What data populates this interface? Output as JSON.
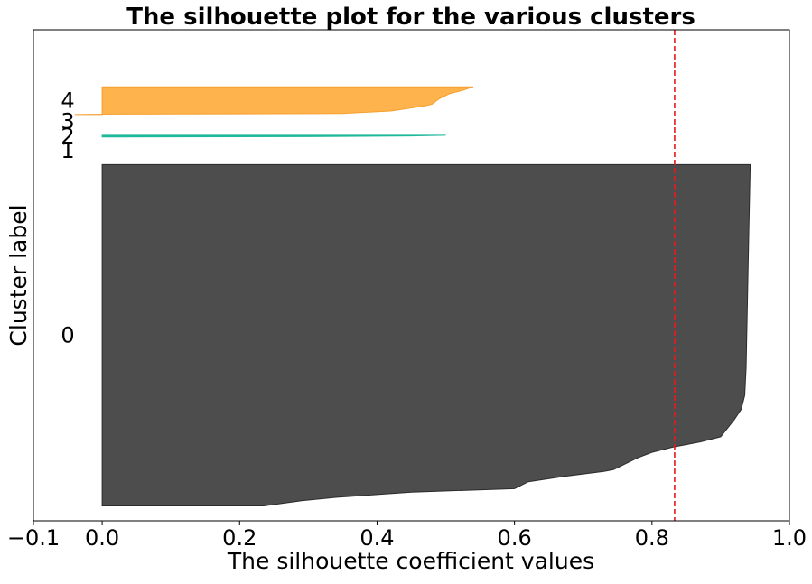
{
  "chart_data": {
    "type": "silhouette",
    "title": "The silhouette plot for the various clusters",
    "xlabel": "The silhouette coefficient values",
    "ylabel": "Cluster label",
    "xlim": [
      -0.1,
      1.0
    ],
    "ylim": [
      0,
      1420
    ],
    "xticks": [
      -0.1,
      0.0,
      0.2,
      0.4,
      0.6,
      0.8,
      1.0
    ],
    "xtick_labels": [
      "−0.1",
      "0.0",
      "0.2",
      "0.4",
      "0.6",
      "0.8",
      "1.0"
    ],
    "average_silhouette": 0.833,
    "average_line_color": "#e41a1c",
    "grid": false,
    "clusters": [
      {
        "label": "0",
        "color": "#4d4d4d",
        "edge_color": "#2b2b2b",
        "y_lower": 43,
        "y_upper": 1030,
        "profile": [
          [
            0,
            0.235
          ],
          [
            15,
            0.29
          ],
          [
            25,
            0.34
          ],
          [
            40,
            0.45
          ],
          [
            50,
            0.6
          ],
          [
            70,
            0.62
          ],
          [
            85,
            0.67
          ],
          [
            100,
            0.73
          ],
          [
            105,
            0.744
          ],
          [
            140,
            0.78
          ],
          [
            155,
            0.8
          ],
          [
            170,
            0.83
          ],
          [
            185,
            0.87
          ],
          [
            200,
            0.9
          ],
          [
            250,
            0.92
          ],
          [
            280,
            0.93
          ],
          [
            320,
            0.935
          ],
          [
            400,
            0.937
          ],
          [
            600,
            0.939
          ],
          [
            800,
            0.941
          ],
          [
            987,
            0.943
          ]
        ]
      },
      {
        "label": "1",
        "color": "#8c2d8c",
        "edge_color": "#8c2d8c",
        "y_lower": 1070,
        "y_upper": 1070,
        "profile": [
          [
            0,
            0.0
          ]
        ]
      },
      {
        "label": "2",
        "color": "#1fb89a",
        "edge_color": "#1fb89a",
        "y_lower": 1110,
        "y_upper": 1115,
        "profile": [
          [
            0,
            0.0
          ],
          [
            1,
            0.3
          ],
          [
            3,
            0.45
          ],
          [
            5,
            0.5
          ]
        ]
      },
      {
        "label": "3",
        "color": "#b8d435",
        "edge_color": "#b8d435",
        "y_lower": 1155,
        "y_upper": 1155,
        "profile": [
          [
            0,
            0.0
          ]
        ]
      },
      {
        "label": "4",
        "color": "#ffb34d",
        "edge_color": "#f5a030",
        "y_lower": 1175,
        "y_upper": 1255,
        "profile": [
          [
            0,
            -0.04
          ],
          [
            1,
            0.0
          ],
          [
            3,
            0.35
          ],
          [
            10,
            0.42
          ],
          [
            25,
            0.47
          ],
          [
            30,
            0.48
          ],
          [
            45,
            0.49
          ],
          [
            60,
            0.505
          ],
          [
            70,
            0.525
          ],
          [
            80,
            0.54
          ]
        ]
      }
    ]
  }
}
